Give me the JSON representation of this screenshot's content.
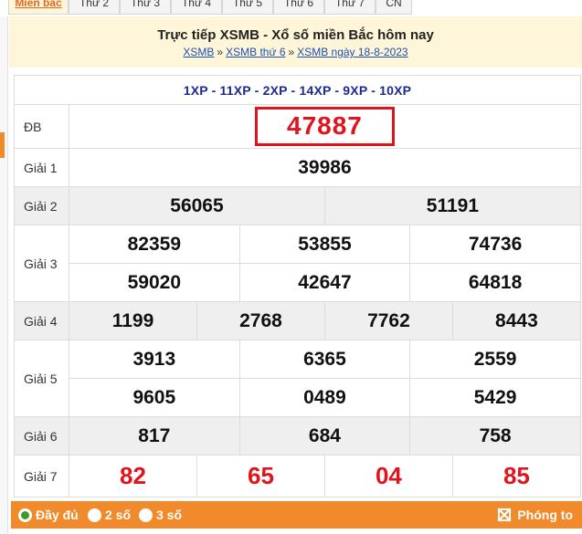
{
  "tabs": [
    "Miền bắc",
    "Thứ 2",
    "Thứ 3",
    "Thứ 4",
    "Thứ 5",
    "Thứ 6",
    "Thứ 7",
    "CN"
  ],
  "header": {
    "title": "Trực tiếp XSMB - Xổ số miền Bắc hôm nay",
    "breadcrumb": [
      "XSMB",
      "XSMB thứ 6",
      "XSMB ngày 18-8-2023"
    ],
    "separator": "»"
  },
  "codes": "1XP - 11XP - 2XP - 14XP - 9XP - 10XP",
  "prizes": {
    "db": {
      "label": "ĐB",
      "value": "47887"
    },
    "g1": {
      "label": "Giải 1",
      "values": [
        "39986"
      ]
    },
    "g2": {
      "label": "Giải 2",
      "values": [
        "56065",
        "51191"
      ]
    },
    "g3": {
      "label": "Giải 3",
      "values": [
        "82359",
        "53855",
        "74736",
        "59020",
        "42647",
        "64818"
      ]
    },
    "g4": {
      "label": "Giải 4",
      "values": [
        "1199",
        "2768",
        "7762",
        "8443"
      ]
    },
    "g5": {
      "label": "Giải 5",
      "values": [
        "3913",
        "6365",
        "2559",
        "9605",
        "0489",
        "5429"
      ]
    },
    "g6": {
      "label": "Giải 6",
      "values": [
        "817",
        "684",
        "758"
      ]
    },
    "g7": {
      "label": "Giải 7",
      "values": [
        "82",
        "65",
        "04",
        "85"
      ]
    }
  },
  "display_options": {
    "options": [
      "Đầy đủ",
      "2 số",
      "3 số"
    ],
    "selected": "Đầy đủ",
    "zoom_label": "Phóng to"
  },
  "colors": {
    "accent": "#f08a2a",
    "highlight_red": "#e0141d",
    "header_bg": "#fff6d9",
    "code_blue": "#1b2b8f"
  }
}
